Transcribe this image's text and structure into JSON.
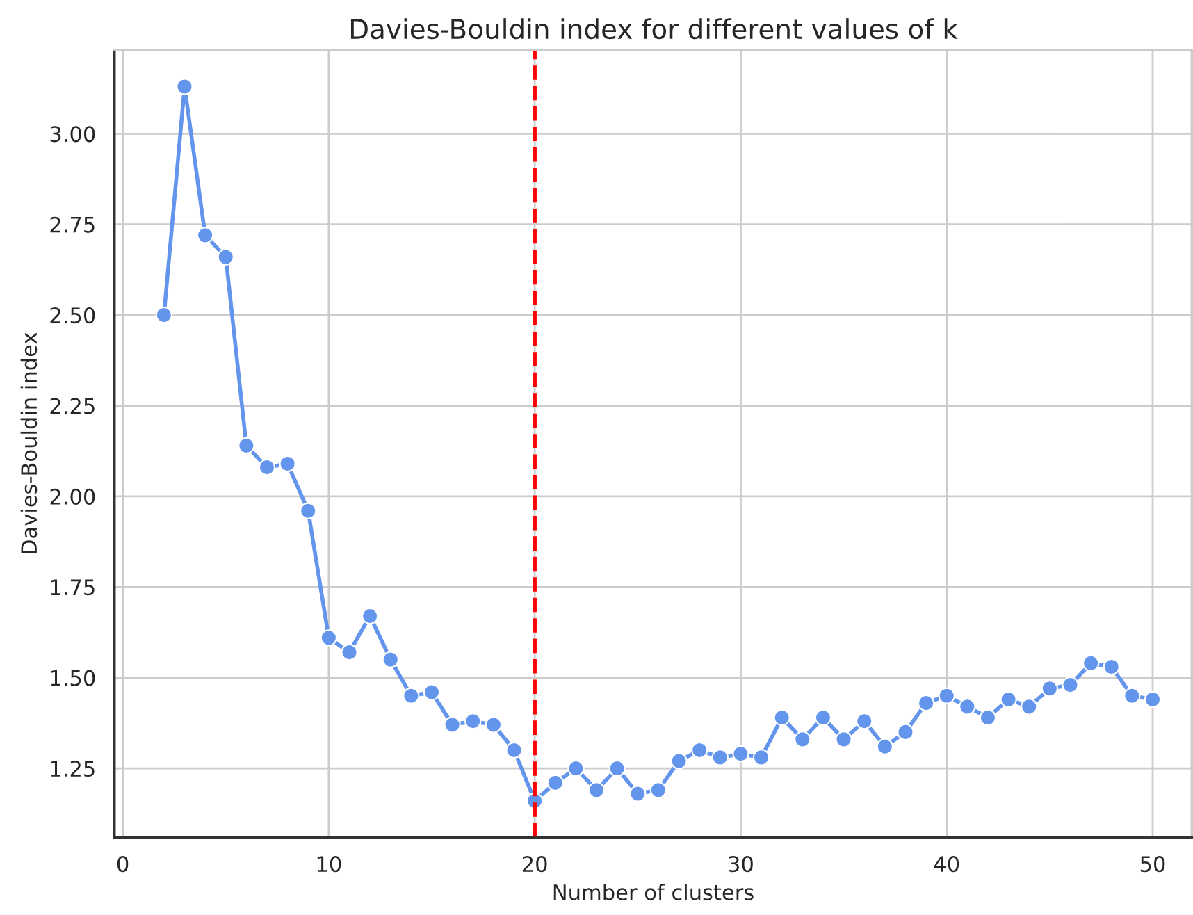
{
  "chart_data": {
    "type": "line",
    "title": "Davies-Bouldin index for different values of k",
    "xlabel": "Number of clusters",
    "ylabel": "Davies-Bouldin index",
    "x": [
      2,
      3,
      4,
      5,
      6,
      7,
      8,
      9,
      10,
      11,
      12,
      13,
      14,
      15,
      16,
      17,
      18,
      19,
      20,
      21,
      22,
      23,
      24,
      25,
      26,
      27,
      28,
      29,
      30,
      31,
      32,
      33,
      34,
      35,
      36,
      37,
      38,
      39,
      40,
      41,
      42,
      43,
      44,
      45,
      46,
      47,
      48,
      49,
      50
    ],
    "series": [
      {
        "color": "#6495ed",
        "values": [
          2.5,
          3.13,
          2.72,
          2.66,
          2.14,
          2.08,
          2.09,
          1.96,
          1.61,
          1.57,
          1.67,
          1.55,
          1.45,
          1.46,
          1.37,
          1.38,
          1.37,
          1.3,
          1.16,
          1.21,
          1.25,
          1.19,
          1.25,
          1.18,
          1.19,
          1.27,
          1.3,
          1.28,
          1.29,
          1.28,
          1.39,
          1.33,
          1.39,
          1.33,
          1.38,
          1.31,
          1.35,
          1.43,
          1.45,
          1.42,
          1.39,
          1.44,
          1.42,
          1.47,
          1.48,
          1.54,
          1.53,
          1.45,
          1.44
        ]
      }
    ],
    "xlim": [
      -0.4,
      51.9
    ],
    "ylim": [
      1.06,
      3.23
    ],
    "xticks": [
      0,
      10,
      20,
      30,
      40,
      50
    ],
    "yticks": [
      {
        "value": 1.25,
        "label": "1.25"
      },
      {
        "value": 1.5,
        "label": "1.50"
      },
      {
        "value": 1.75,
        "label": "1.75"
      },
      {
        "value": 2.0,
        "label": "2.00"
      },
      {
        "value": 2.25,
        "label": "2.25"
      },
      {
        "value": 2.5,
        "label": "2.50"
      },
      {
        "value": 2.75,
        "label": "2.75"
      },
      {
        "value": 3.0,
        "label": "3.00"
      }
    ],
    "ref_lines": [
      {
        "axis": "x",
        "value": 20,
        "color": "#ff0000",
        "line_style": "dashed"
      }
    ],
    "grid": true,
    "marker": "circle",
    "line_style": "solid"
  }
}
